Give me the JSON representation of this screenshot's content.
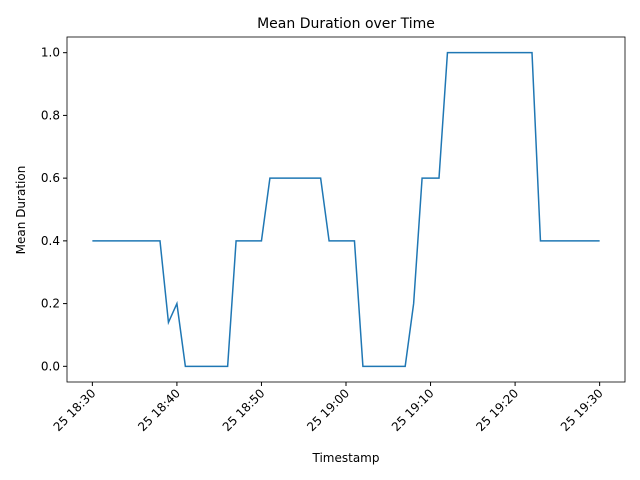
{
  "chart_data": {
    "type": "line",
    "title": "Mean Duration over Time",
    "x_label": "Timestamp",
    "y_label": "Mean Duration",
    "x": [
      "25 18:30",
      "25 18:38",
      "25 18:39",
      "25 18:40",
      "25 18:41",
      "25 18:46",
      "25 18:47",
      "25 18:50",
      "25 18:51",
      "25 18:57",
      "25 18:58",
      "25 19:01",
      "25 19:02",
      "25 19:07",
      "25 19:08",
      "25 19:09",
      "25 19:11",
      "25 19:12",
      "25 19:22",
      "25 19:23",
      "25 19:30"
    ],
    "series": [
      {
        "name": "Mean Duration",
        "color": "#1f77b4",
        "values": [
          0.4,
          0.4,
          0.14,
          0.2,
          0.0,
          0.0,
          0.4,
          0.4,
          0.6,
          0.6,
          0.4,
          0.4,
          0.0,
          0.0,
          0.2,
          0.6,
          0.6,
          1.0,
          1.0,
          0.4,
          0.4
        ]
      }
    ],
    "xlim": [
      "25 18:27",
      "25 19:33"
    ],
    "xticks": [
      "25 18:30",
      "25 18:40",
      "25 18:50",
      "25 19:00",
      "25 19:10",
      "25 19:20",
      "25 19:30"
    ],
    "ylim": [
      -0.05,
      1.05
    ],
    "yticks": [
      {
        "value": 0,
        "label": "0.0"
      },
      {
        "value": 0.2,
        "label": "0.2"
      },
      {
        "value": 0.4,
        "label": "0.4"
      },
      {
        "value": 0.6,
        "label": "0.6"
      },
      {
        "value": 0.8,
        "label": "0.8"
      },
      {
        "value": 1,
        "label": "1.0"
      }
    ],
    "grid": false
  }
}
